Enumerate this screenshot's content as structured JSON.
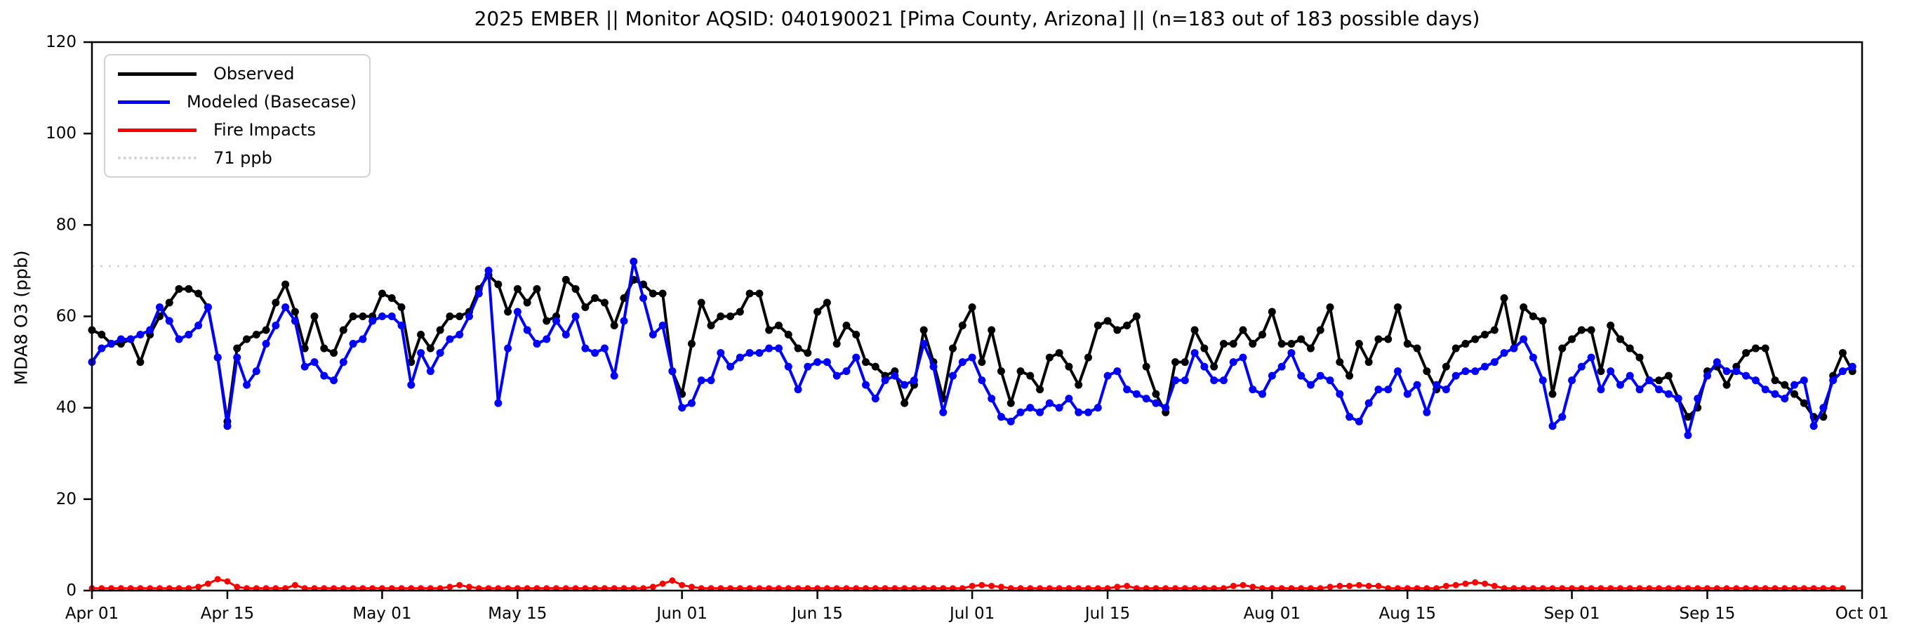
{
  "figure": {
    "title": "2025 EMBER || Monitor AQSID: 040190021 [Pima County, Arizona] || (n=183 out of 183 possible days)",
    "ylabel": "MDA8 O3 (ppb)",
    "background": "#ffffff"
  },
  "legend": {
    "items": [
      {
        "label": "Observed",
        "color": "#000000",
        "style": "solid"
      },
      {
        "label": "Modeled (Basecase)",
        "color": "#0000ff",
        "style": "solid"
      },
      {
        "label": "Fire Impacts",
        "color": "#ff0000",
        "style": "solid"
      },
      {
        "label": "71 ppb",
        "color": "#d3d3d3",
        "style": "dotted"
      }
    ]
  },
  "chart_data": {
    "type": "line",
    "title": "2025 EMBER || Monitor AQSID: 040190021 [Pima County, Arizona] || (n=183 out of 183 possible days)",
    "xlabel": "",
    "ylabel": "MDA8 O3 (ppb)",
    "ylim": [
      0,
      120
    ],
    "y_ticks": [
      0,
      20,
      40,
      60,
      80,
      100,
      120
    ],
    "x_start_date": "Apr 01",
    "x_end_date": "Oct 01",
    "n_days": 183,
    "x_ticks": [
      {
        "label": "Apr 01",
        "day": 0
      },
      {
        "label": "Apr 15",
        "day": 14
      },
      {
        "label": "May 01",
        "day": 30
      },
      {
        "label": "May 15",
        "day": 44
      },
      {
        "label": "Jun 01",
        "day": 61
      },
      {
        "label": "Jun 15",
        "day": 75
      },
      {
        "label": "Jul 01",
        "day": 91
      },
      {
        "label": "Jul 15",
        "day": 105
      },
      {
        "label": "Aug 01",
        "day": 122
      },
      {
        "label": "Aug 15",
        "day": 136
      },
      {
        "label": "Sep 01",
        "day": 153
      },
      {
        "label": "Sep 15",
        "day": 167
      },
      {
        "label": "Oct 01",
        "day": 183
      }
    ],
    "threshold": {
      "label": "71 ppb",
      "value": 71,
      "color": "#d3d3d3"
    },
    "grid": false,
    "legend_position": "upper left",
    "series": [
      {
        "name": "Observed",
        "color": "#000000",
        "marker": "circle",
        "values": [
          57,
          56,
          54,
          54,
          55,
          50,
          56,
          60,
          63,
          66,
          66,
          65,
          62,
          51,
          37,
          53,
          55,
          56,
          57,
          63,
          67,
          61,
          53,
          60,
          53,
          52,
          57,
          60,
          60,
          60,
          65,
          64,
          62,
          50,
          56,
          53,
          57,
          60,
          60,
          61,
          66,
          69,
          67,
          61,
          66,
          63,
          66,
          59,
          60,
          68,
          66,
          62,
          64,
          63,
          58,
          64,
          68,
          67,
          65,
          65,
          48,
          43,
          54,
          63,
          58,
          60,
          60,
          61,
          65,
          65,
          57,
          58,
          56,
          53,
          52,
          61,
          63,
          54,
          58,
          56,
          50,
          49,
          47,
          48,
          41,
          45,
          57,
          50,
          42,
          53,
          58,
          62,
          50,
          57,
          48,
          41,
          48,
          47,
          44,
          51,
          52,
          49,
          45,
          51,
          58,
          59,
          57,
          58,
          60,
          49,
          43,
          39,
          50,
          50,
          57,
          53,
          49,
          54,
          54,
          57,
          54,
          56,
          61,
          54,
          54,
          55,
          53,
          57,
          62,
          50,
          47,
          54,
          50,
          55,
          55,
          62,
          54,
          53,
          48,
          44,
          49,
          53,
          54,
          55,
          56,
          57,
          64,
          53,
          62,
          60,
          59,
          43,
          53,
          55,
          57,
          57,
          48,
          58,
          55,
          53,
          51,
          46,
          46,
          47,
          42,
          38,
          40,
          48,
          49,
          45,
          49,
          52,
          53,
          53,
          46,
          45,
          43,
          41,
          38,
          38,
          47,
          52,
          48
        ]
      },
      {
        "name": "Modeled (Basecase)",
        "color": "#0000ff",
        "marker": "circle",
        "values": [
          50,
          53,
          54,
          55,
          55,
          56,
          57,
          62,
          59,
          55,
          56,
          58,
          62,
          51,
          36,
          51,
          45,
          48,
          54,
          58,
          62,
          59,
          49,
          50,
          47,
          46,
          50,
          54,
          55,
          59,
          60,
          60,
          58,
          45,
          52,
          48,
          52,
          55,
          56,
          60,
          65,
          70,
          41,
          53,
          61,
          57,
          54,
          55,
          59,
          56,
          60,
          53,
          52,
          53,
          47,
          59,
          72,
          64,
          56,
          58,
          48,
          40,
          41,
          46,
          46,
          52,
          49,
          51,
          52,
          52,
          53,
          53,
          49,
          44,
          49,
          50,
          50,
          47,
          48,
          51,
          45,
          42,
          46,
          47,
          45,
          46,
          54,
          49,
          39,
          47,
          50,
          51,
          46,
          42,
          38,
          37,
          39,
          40,
          39,
          41,
          40,
          42,
          39,
          39,
          40,
          47,
          48,
          44,
          43,
          42,
          41,
          40,
          46,
          46,
          52,
          49,
          46,
          46,
          50,
          51,
          44,
          43,
          47,
          49,
          52,
          47,
          45,
          47,
          46,
          43,
          38,
          37,
          41,
          44,
          44,
          48,
          43,
          45,
          39,
          45,
          44,
          47,
          48,
          48,
          49,
          50,
          52,
          53,
          55,
          51,
          46,
          36,
          38,
          46,
          49,
          51,
          44,
          48,
          45,
          47,
          44,
          46,
          44,
          43,
          42,
          34,
          42,
          47,
          50,
          48,
          48,
          47,
          46,
          44,
          43,
          42,
          45,
          46,
          36,
          40,
          46,
          48,
          49
        ]
      },
      {
        "name": "Fire Impacts",
        "color": "#ff0000",
        "marker": "circle",
        "values": [
          0.5,
          0.5,
          0.5,
          0.5,
          0.5,
          0.5,
          0.5,
          0.5,
          0.5,
          0.5,
          0.5,
          0.8,
          1.5,
          2.5,
          2.0,
          0.8,
          0.5,
          0.5,
          0.5,
          0.5,
          0.5,
          1.2,
          0.5,
          0.5,
          0.5,
          0.5,
          0.5,
          0.5,
          0.5,
          0.5,
          0.5,
          0.5,
          0.5,
          0.5,
          0.5,
          0.5,
          0.5,
          0.8,
          1.2,
          0.8,
          0.5,
          0.5,
          0.5,
          0.5,
          0.5,
          0.5,
          0.5,
          0.5,
          0.5,
          0.5,
          0.5,
          0.5,
          0.5,
          0.5,
          0.5,
          0.5,
          0.5,
          0.5,
          0.8,
          1.5,
          2.2,
          1.2,
          0.8,
          0.5,
          0.5,
          0.5,
          0.5,
          0.5,
          0.5,
          0.5,
          0.5,
          0.5,
          0.5,
          0.5,
          0.5,
          0.5,
          0.5,
          0.5,
          0.5,
          0.5,
          0.5,
          0.5,
          0.5,
          0.5,
          0.5,
          0.5,
          0.5,
          0.5,
          0.5,
          0.5,
          0.5,
          1.0,
          1.2,
          1.0,
          0.8,
          0.5,
          0.5,
          0.5,
          0.5,
          0.5,
          0.5,
          0.5,
          0.5,
          0.5,
          0.5,
          0.5,
          0.8,
          1.0,
          0.5,
          0.5,
          0.5,
          0.5,
          0.5,
          0.5,
          0.5,
          0.5,
          0.5,
          0.5,
          1.0,
          1.2,
          0.8,
          0.5,
          0.5,
          0.5,
          0.5,
          0.5,
          0.5,
          0.5,
          0.8,
          1.0,
          1.0,
          1.2,
          1.0,
          1.0,
          0.5,
          0.5,
          0.5,
          0.5,
          0.5,
          0.5,
          1.0,
          1.2,
          1.5,
          1.8,
          1.5,
          1.0,
          0.5,
          0.5,
          0.5,
          0.5,
          0.5,
          0.5,
          0.5,
          0.5,
          0.5,
          0.5,
          0.5,
          0.5,
          0.5,
          0.5,
          0.5,
          0.5,
          0.5,
          0.5,
          0.5,
          0.5,
          0.5,
          0.5,
          0.5,
          0.5,
          0.5,
          0.5,
          0.5,
          0.5,
          0.5,
          0.5,
          0.5,
          0.5,
          0.5,
          0.5,
          0.5,
          0.5
        ]
      }
    ]
  }
}
